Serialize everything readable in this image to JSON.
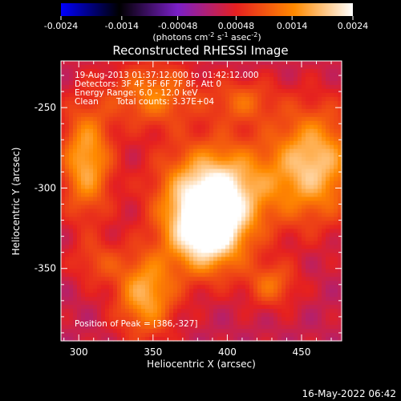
{
  "chart_data": {
    "type": "heatmap",
    "title": "Reconstructed RHESSI Image",
    "xlabel": "Heliocentric X (arcsec)",
    "ylabel": "Heliocentric Y (arcsec)",
    "xlim": [
      288,
      477
    ],
    "ylim": [
      -395,
      -221
    ],
    "xticks": [
      300,
      350,
      400,
      450
    ],
    "yticks": [
      -250,
      -300,
      -350
    ],
    "colorbar": {
      "min": -0.0024,
      "max": 0.0024,
      "ticks": [
        "-0.0024",
        "-0.0014",
        "-0.00048",
        "0.00048",
        "0.0014",
        "0.0024"
      ],
      "unit_label": "(photons cm",
      "unit_sup1": "-2",
      "unit_mid": " s",
      "unit_sup2": "-1",
      "unit_mid2": " asec",
      "unit_sup3": "-2",
      "unit_end": ")",
      "colors": [
        "#0000ff",
        "#000000",
        "#7a1fc8",
        "#e52020",
        "#ff8a00",
        "#ffffff"
      ]
    },
    "annotations": {
      "line1": "19-Aug-2013 01:37:12.000 to 01:42:12.000",
      "line2": "Detectors: 3F 4F 5F 6F 7F 8F, Att 0",
      "line3": "Energy Range: 6.0 - 12.0 keV",
      "line4a": "Clean",
      "line4b": "Total counts: 3.37E+04",
      "peak": "Position of Peak = [386,-327]"
    },
    "sources": [
      {
        "x": 386,
        "y": -327,
        "value": 0.0024,
        "sx": 18,
        "sy": 18
      },
      {
        "x": 393,
        "y": -300,
        "value": 0.0019,
        "sx": 26,
        "sy": 20
      },
      {
        "x": 458,
        "y": -285,
        "value": 0.0017,
        "sx": 20,
        "sy": 24
      },
      {
        "x": 305,
        "y": -283,
        "value": 0.0015,
        "sx": 12,
        "sy": 24
      },
      {
        "x": 345,
        "y": -366,
        "value": 0.0015,
        "sx": 14,
        "sy": 18
      },
      {
        "x": 350,
        "y": -242,
        "value": 0.0011,
        "sx": 20,
        "sy": 14
      },
      {
        "x": 430,
        "y": -360,
        "value": 0.0009,
        "sx": 12,
        "sy": 10
      },
      {
        "x": 312,
        "y": -346,
        "value": 0.0006,
        "sx": 12,
        "sy": 10
      },
      {
        "x": 410,
        "y": -246,
        "value": 0.0008,
        "sx": 16,
        "sy": 10
      }
    ],
    "background": 0.00022
  },
  "footer": {
    "date": "16-May-2022 06:42"
  }
}
